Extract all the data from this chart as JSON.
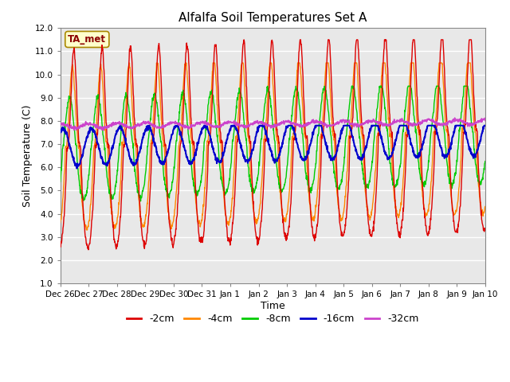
{
  "title": "Alfalfa Soil Temperatures Set A",
  "xlabel": "Time",
  "ylabel": "Soil Temperature (C)",
  "ylim": [
    1.0,
    12.0
  ],
  "yticks": [
    1.0,
    2.0,
    3.0,
    4.0,
    5.0,
    6.0,
    7.0,
    8.0,
    9.0,
    10.0,
    11.0,
    12.0
  ],
  "fig_bg_color": "#ffffff",
  "plot_bg_color": "#e8e8e8",
  "colors": {
    "-2cm": "#dd0000",
    "-4cm": "#ff8800",
    "-8cm": "#00cc00",
    "-16cm": "#0000cc",
    "-32cm": "#cc44cc"
  },
  "tick_days": [
    0,
    1,
    2,
    3,
    4,
    5,
    6,
    7,
    8,
    9,
    10,
    11,
    12,
    13,
    14,
    15
  ],
  "tick_labels": [
    "Dec 26",
    "Dec 27",
    "Dec 28",
    "Dec 29",
    "Dec 30",
    "Dec 31",
    "Jan 1",
    "Jan 2",
    "Jan 3",
    "Jan 4",
    "Jan 5",
    "Jan 6",
    "Jan 7",
    "Jan 8",
    "Jan 9",
    "Jan 10"
  ],
  "annotation_text": "TA_met",
  "annotation_fg": "#8b0000",
  "annotation_bg": "#ffffcc",
  "annotation_border": "#aa8800",
  "lw_shallow": 1.0,
  "lw_deep": 1.5,
  "lw_32": 1.2
}
